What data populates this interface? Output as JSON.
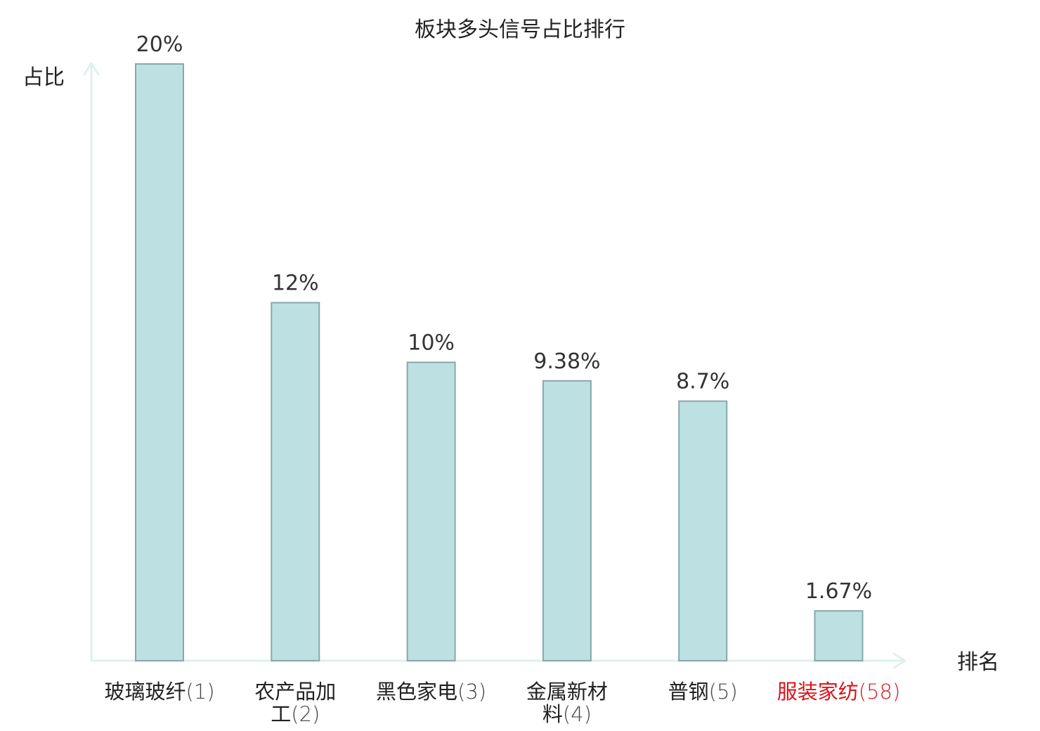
{
  "chart_data": {
    "type": "bar",
    "title": "板块多头信号占比排行",
    "xlabel": "排名",
    "ylabel": "占比",
    "unit": "%",
    "ylim": [
      0,
      20
    ],
    "categories": [
      {
        "name": "玻璃玻纤",
        "rank": "(1)",
        "highlight": false
      },
      {
        "name": "农产品加工",
        "rank": "(2)",
        "highlight": false
      },
      {
        "name": "黑色家电",
        "rank": "(3)",
        "highlight": false
      },
      {
        "name": "金属新材料",
        "rank": "(4)",
        "highlight": false
      },
      {
        "name": "普钢",
        "rank": "(5)",
        "highlight": false
      },
      {
        "name": "服装家纺",
        "rank": "(58)",
        "highlight": true
      }
    ],
    "values": [
      20,
      12,
      10,
      9.38,
      8.7,
      1.67
    ],
    "value_labels": [
      "20%",
      "12%",
      "10%",
      "9.38%",
      "8.7%",
      "1.67%"
    ],
    "grid": false,
    "legend": "none"
  },
  "colors": {
    "bar_fill": "#bde0e2",
    "bar_stroke": "#88a8aa",
    "axis": "#dff1ee",
    "text": "#222222",
    "highlight": "#d9141c",
    "rank_normal": "#444444"
  }
}
